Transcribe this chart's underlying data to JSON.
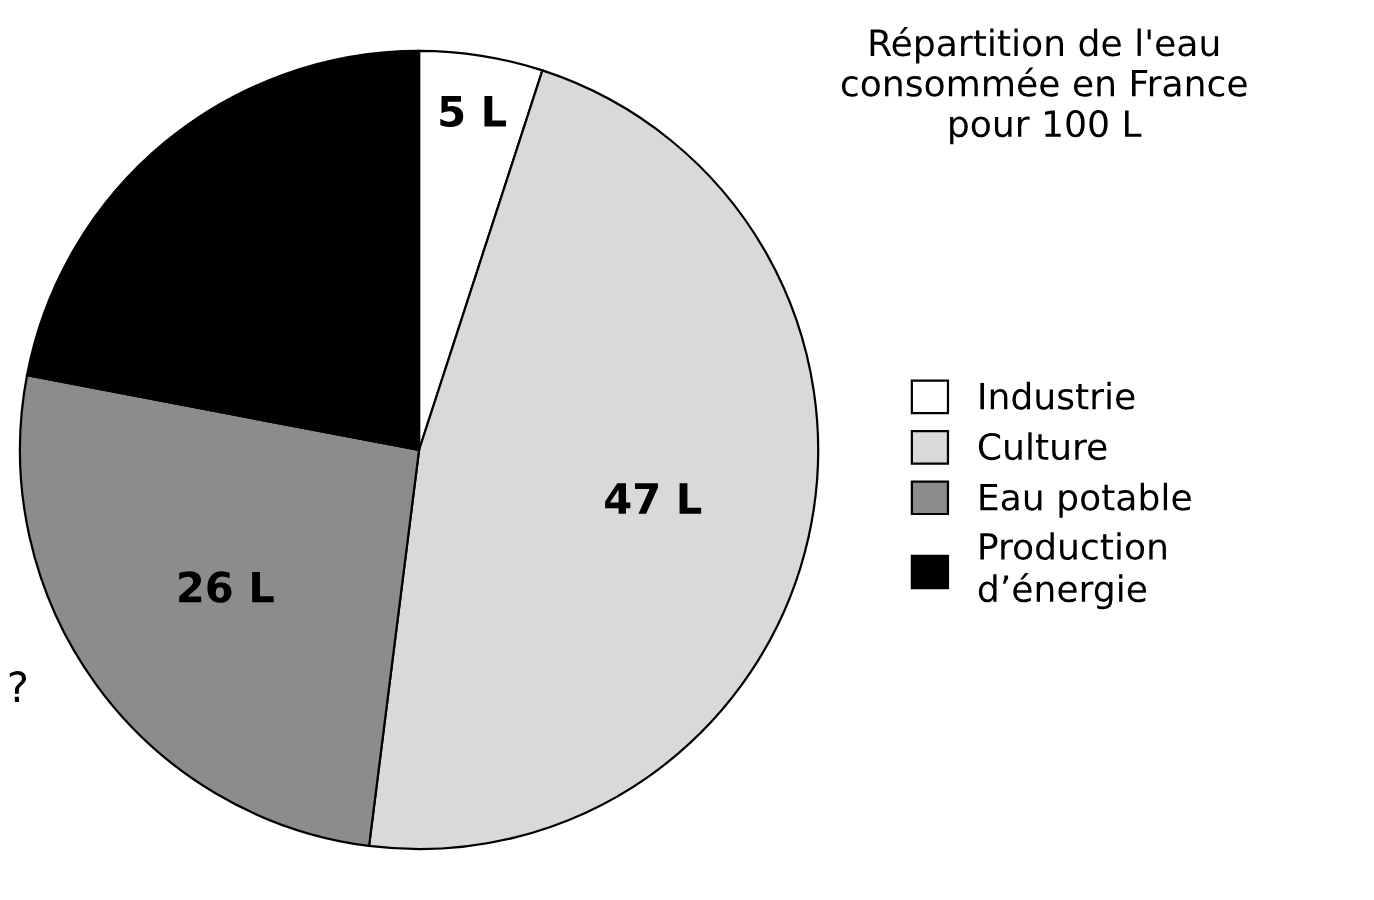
{
  "chart_data": {
    "type": "pie",
    "title": "Répartition de l'eau\nconsommée en France\npour 100 L",
    "categories": [
      "Industrie",
      "Culture",
      "Eau potable",
      "Production\nd’énergie"
    ],
    "values": [
      5,
      47,
      26,
      22
    ],
    "colors": [
      "#ffffff",
      "#d9d9d9",
      "#8c8c8c",
      "#000000"
    ],
    "value_labels": [
      "5 L",
      "47 L",
      "26 L",
      null
    ],
    "annotations": [
      "?"
    ],
    "legend": "right"
  }
}
